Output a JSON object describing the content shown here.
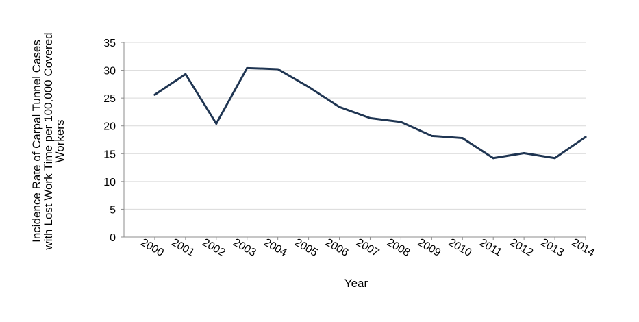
{
  "chart_data": {
    "type": "line",
    "title": "",
    "xlabel": "Year",
    "ylabel": "Incidence Rate of Carpal Tunnel Cases with Lost Work Time per 100,000 Covered Workers",
    "ylabel_lines": [
      "Incidence Rate of Carpal Tunnel Cases",
      "with Lost Work Time per 100,000 Covered",
      "Workers"
    ],
    "categories": [
      "2000",
      "2001",
      "2002",
      "2003",
      "2004",
      "2005",
      "2006",
      "2007",
      "2008",
      "2009",
      "2010",
      "2011",
      "2012",
      "2013",
      "2014"
    ],
    "series": [
      {
        "values": [
          25.6,
          29.3,
          20.4,
          30.4,
          30.2,
          27.0,
          23.4,
          21.4,
          20.7,
          18.2,
          17.8,
          14.2,
          15.1,
          14.2,
          18.0
        ],
        "color": "#1f3552"
      }
    ],
    "ylim": [
      0,
      35
    ],
    "yticks": [
      0,
      5,
      10,
      15,
      20,
      25,
      30,
      35
    ],
    "grid": true,
    "legend": "none"
  }
}
